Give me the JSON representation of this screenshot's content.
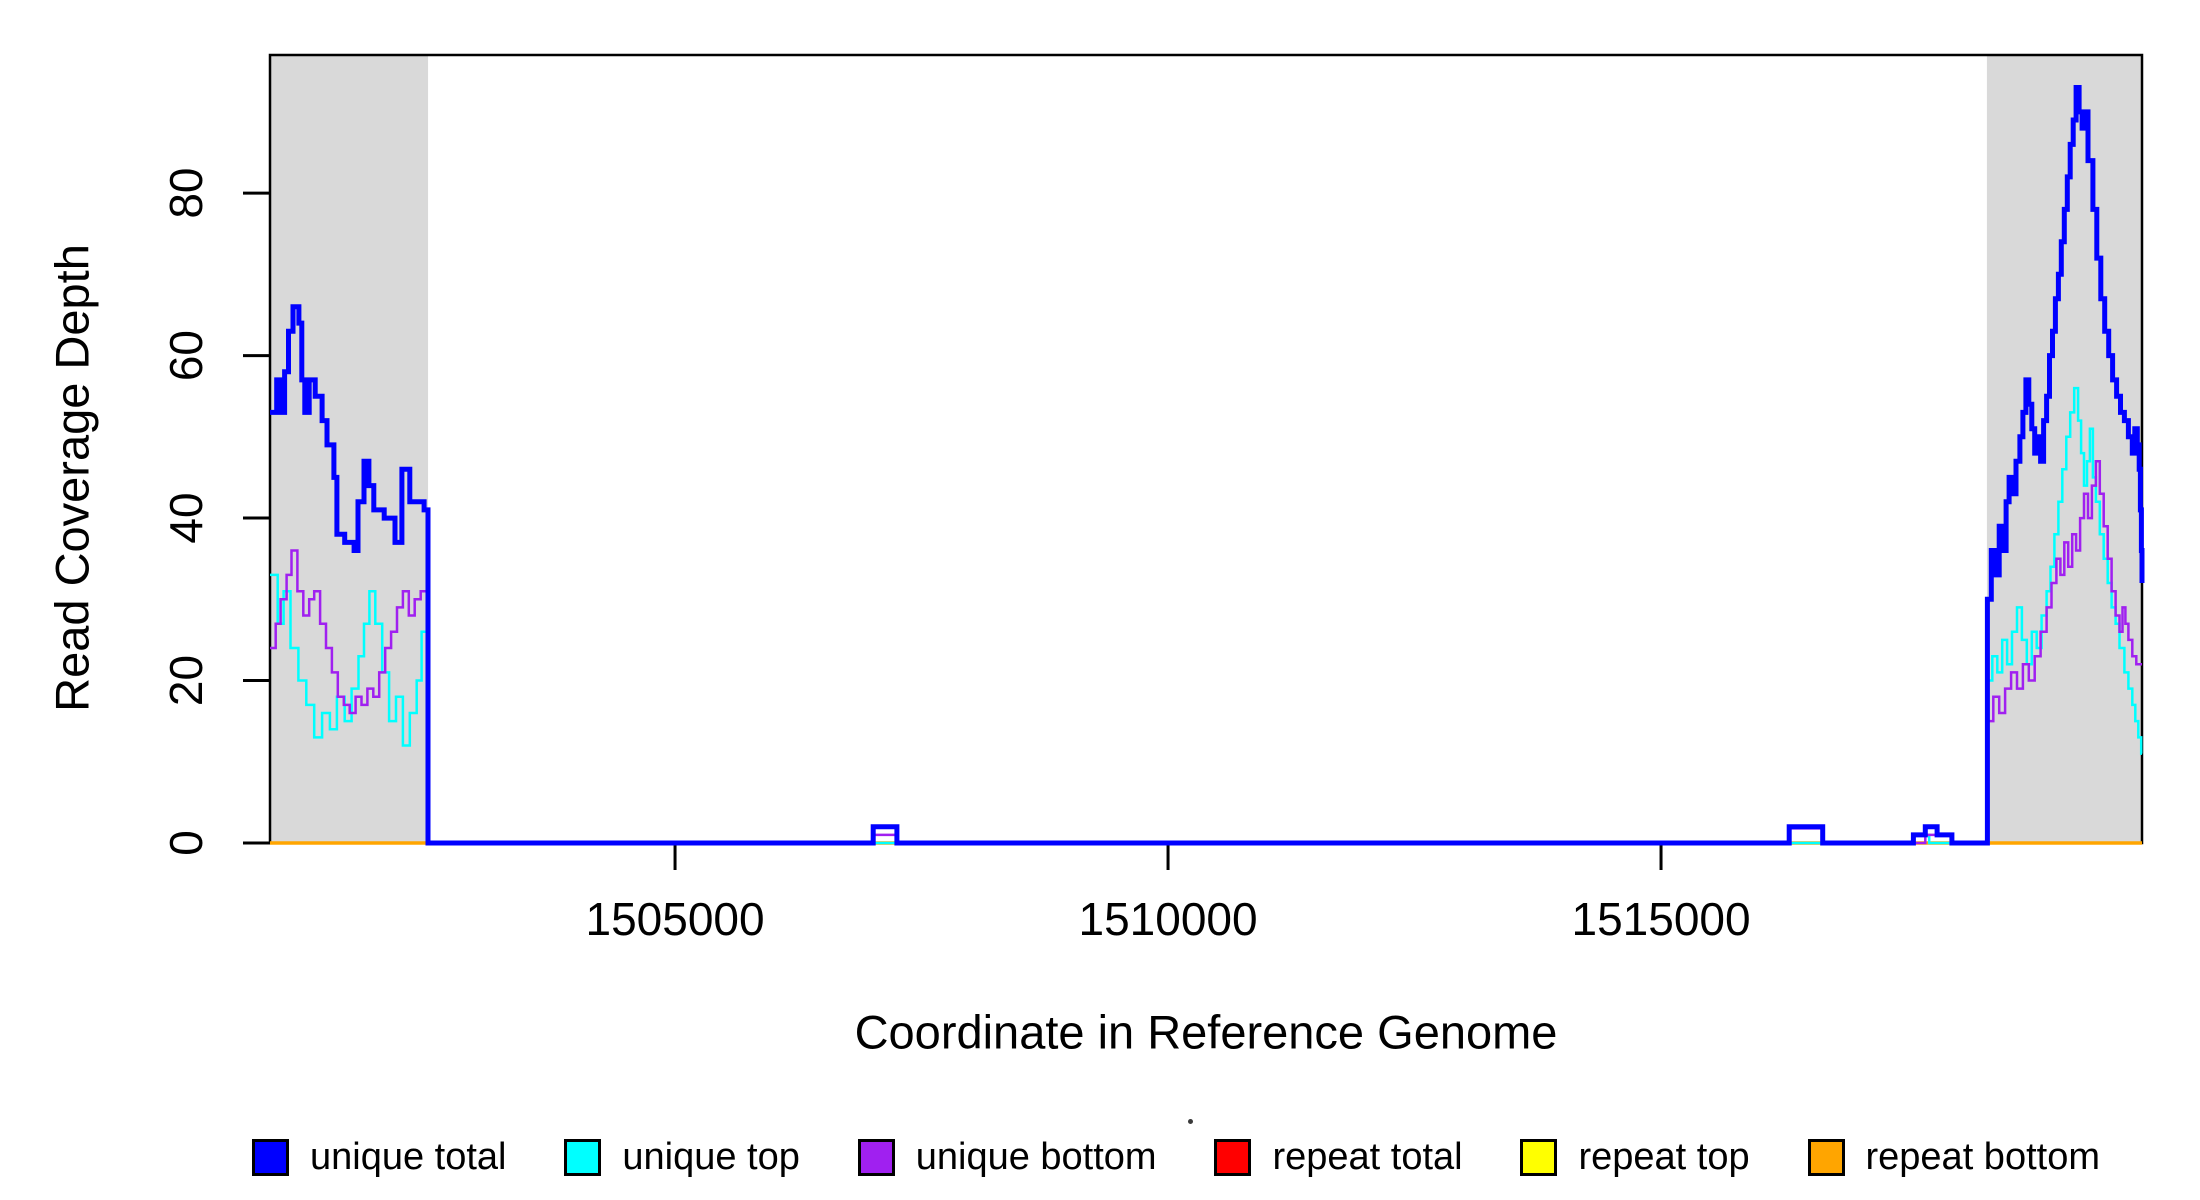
{
  "chart_data": {
    "type": "line",
    "subtype": "step",
    "title": "",
    "xlabel": "Coordinate in Reference Genome",
    "ylabel": "Read Coverage Depth",
    "xlim": [
      1500892,
      1519878
    ],
    "ylim": [
      0,
      97
    ],
    "grid": false,
    "legend_position": "bottom",
    "x_ticks": [
      {
        "value": 1505000,
        "label": "1505000"
      },
      {
        "value": 1510000,
        "label": "1510000"
      },
      {
        "value": 1515000,
        "label": "1515000"
      }
    ],
    "y_ticks": [
      {
        "value": 0,
        "label": "0"
      },
      {
        "value": 20,
        "label": "20"
      },
      {
        "value": 40,
        "label": "40"
      },
      {
        "value": 60,
        "label": "60"
      },
      {
        "value": 80,
        "label": "80"
      }
    ],
    "highlight_regions": [
      {
        "x0": 1500892,
        "x1": 1502495,
        "color": "#d9d9d9"
      },
      {
        "x0": 1518305,
        "x1": 1519878,
        "color": "#d9d9d9"
      }
    ],
    "series": [
      {
        "name": "repeat total",
        "color": "#ff0000",
        "line_width": 2,
        "steps": [
          [
            1500892,
            0
          ],
          [
            1519878,
            0
          ]
        ]
      },
      {
        "name": "repeat top",
        "color": "#ffff00",
        "line_width": 2,
        "steps": [
          [
            1500892,
            0
          ],
          [
            1519878,
            0
          ]
        ]
      },
      {
        "name": "repeat bottom",
        "color": "#ffa500",
        "line_width": 3.5,
        "steps": [
          [
            1500892,
            0
          ],
          [
            1519878,
            0
          ]
        ]
      },
      {
        "name": "unique top",
        "color": "#00ffff",
        "line_width": 2.5,
        "steps": [
          [
            1500892,
            33
          ],
          [
            1500970,
            27
          ],
          [
            1501030,
            31
          ],
          [
            1501100,
            24
          ],
          [
            1501180,
            20
          ],
          [
            1501260,
            17
          ],
          [
            1501340,
            13
          ],
          [
            1501420,
            16
          ],
          [
            1501500,
            14
          ],
          [
            1501570,
            18
          ],
          [
            1501650,
            15
          ],
          [
            1501720,
            19
          ],
          [
            1501790,
            23
          ],
          [
            1501845,
            27
          ],
          [
            1501900,
            31
          ],
          [
            1501960,
            27
          ],
          [
            1502030,
            21
          ],
          [
            1502100,
            15
          ],
          [
            1502170,
            18
          ],
          [
            1502240,
            12
          ],
          [
            1502310,
            16
          ],
          [
            1502380,
            20
          ],
          [
            1502430,
            26
          ],
          [
            1502494,
            0
          ],
          [
            1517560,
            1
          ],
          [
            1517720,
            0
          ],
          [
            1518310,
            20
          ],
          [
            1518360,
            23
          ],
          [
            1518410,
            21
          ],
          [
            1518460,
            25
          ],
          [
            1518510,
            22
          ],
          [
            1518560,
            26
          ],
          [
            1518610,
            29
          ],
          [
            1518660,
            25
          ],
          [
            1518710,
            22
          ],
          [
            1518760,
            26
          ],
          [
            1518810,
            24
          ],
          [
            1518860,
            28
          ],
          [
            1518910,
            31
          ],
          [
            1518950,
            34
          ],
          [
            1518990,
            38
          ],
          [
            1519030,
            42
          ],
          [
            1519070,
            46
          ],
          [
            1519110,
            50
          ],
          [
            1519150,
            53
          ],
          [
            1519190,
            56
          ],
          [
            1519230,
            52
          ],
          [
            1519260,
            48
          ],
          [
            1519290,
            44
          ],
          [
            1519320,
            47
          ],
          [
            1519350,
            51
          ],
          [
            1519380,
            45
          ],
          [
            1519410,
            42
          ],
          [
            1519450,
            38
          ],
          [
            1519490,
            35
          ],
          [
            1519530,
            32
          ],
          [
            1519570,
            29
          ],
          [
            1519610,
            27
          ],
          [
            1519650,
            24
          ],
          [
            1519700,
            21
          ],
          [
            1519740,
            19
          ],
          [
            1519780,
            17
          ],
          [
            1519810,
            15
          ],
          [
            1519840,
            13
          ],
          [
            1519870,
            11
          ],
          [
            1519878,
            11
          ]
        ]
      },
      {
        "name": "unique bottom",
        "color": "#a020f0",
        "line_width": 2.5,
        "steps": [
          [
            1500892,
            24
          ],
          [
            1500950,
            27
          ],
          [
            1501000,
            30
          ],
          [
            1501060,
            33
          ],
          [
            1501110,
            36
          ],
          [
            1501170,
            31
          ],
          [
            1501230,
            28
          ],
          [
            1501290,
            30
          ],
          [
            1501340,
            31
          ],
          [
            1501400,
            27
          ],
          [
            1501460,
            24
          ],
          [
            1501520,
            21
          ],
          [
            1501580,
            18
          ],
          [
            1501640,
            17
          ],
          [
            1501700,
            16
          ],
          [
            1501760,
            18
          ],
          [
            1501820,
            17
          ],
          [
            1501880,
            19
          ],
          [
            1501940,
            18
          ],
          [
            1502000,
            21
          ],
          [
            1502060,
            24
          ],
          [
            1502120,
            26
          ],
          [
            1502180,
            29
          ],
          [
            1502240,
            31
          ],
          [
            1502300,
            28
          ],
          [
            1502360,
            30
          ],
          [
            1502420,
            31
          ],
          [
            1502494,
            0
          ],
          [
            1507010,
            1
          ],
          [
            1507250,
            0
          ],
          [
            1516300,
            1.8
          ],
          [
            1516640,
            0
          ],
          [
            1517680,
            1
          ],
          [
            1517950,
            0
          ],
          [
            1518310,
            15
          ],
          [
            1518370,
            18
          ],
          [
            1518430,
            16
          ],
          [
            1518490,
            19
          ],
          [
            1518550,
            21
          ],
          [
            1518610,
            19
          ],
          [
            1518670,
            22
          ],
          [
            1518730,
            20
          ],
          [
            1518790,
            23
          ],
          [
            1518850,
            26
          ],
          [
            1518910,
            29
          ],
          [
            1518960,
            32
          ],
          [
            1519010,
            35
          ],
          [
            1519050,
            33
          ],
          [
            1519090,
            37
          ],
          [
            1519130,
            34
          ],
          [
            1519170,
            38
          ],
          [
            1519210,
            36
          ],
          [
            1519250,
            40
          ],
          [
            1519290,
            43
          ],
          [
            1519330,
            40
          ],
          [
            1519370,
            44
          ],
          [
            1519410,
            47
          ],
          [
            1519450,
            43
          ],
          [
            1519490,
            39
          ],
          [
            1519530,
            35
          ],
          [
            1519570,
            31
          ],
          [
            1519610,
            28
          ],
          [
            1519650,
            26
          ],
          [
            1519680,
            29
          ],
          [
            1519710,
            27
          ],
          [
            1519740,
            25
          ],
          [
            1519780,
            23
          ],
          [
            1519820,
            22
          ],
          [
            1519878,
            22
          ]
        ]
      },
      {
        "name": "unique total",
        "color": "#0000ff",
        "line_width": 5,
        "steps": [
          [
            1500892,
            53
          ],
          [
            1500960,
            57
          ],
          [
            1500990,
            53
          ],
          [
            1501040,
            58
          ],
          [
            1501080,
            63
          ],
          [
            1501125,
            66
          ],
          [
            1501185,
            64
          ],
          [
            1501215,
            57
          ],
          [
            1501245,
            53
          ],
          [
            1501290,
            57
          ],
          [
            1501350,
            55
          ],
          [
            1501420,
            52
          ],
          [
            1501470,
            49
          ],
          [
            1501540,
            45
          ],
          [
            1501570,
            38
          ],
          [
            1501650,
            37
          ],
          [
            1501745,
            36
          ],
          [
            1501785,
            42
          ],
          [
            1501845,
            47
          ],
          [
            1501895,
            44
          ],
          [
            1501945,
            41
          ],
          [
            1502050,
            40
          ],
          [
            1502160,
            37
          ],
          [
            1502230,
            46
          ],
          [
            1502310,
            42
          ],
          [
            1502410,
            42
          ],
          [
            1502455,
            41
          ],
          [
            1502494,
            0
          ],
          [
            1507010,
            2
          ],
          [
            1507250,
            0
          ],
          [
            1516300,
            2
          ],
          [
            1516640,
            0
          ],
          [
            1517560,
            1
          ],
          [
            1517680,
            2
          ],
          [
            1517800,
            1
          ],
          [
            1517950,
            0
          ],
          [
            1518310,
            30
          ],
          [
            1518350,
            36
          ],
          [
            1518390,
            33
          ],
          [
            1518430,
            39
          ],
          [
            1518460,
            36
          ],
          [
            1518500,
            42
          ],
          [
            1518530,
            45
          ],
          [
            1518560,
            43
          ],
          [
            1518600,
            47
          ],
          [
            1518640,
            50
          ],
          [
            1518670,
            53
          ],
          [
            1518700,
            57
          ],
          [
            1518730,
            54
          ],
          [
            1518760,
            51
          ],
          [
            1518790,
            48
          ],
          [
            1518820,
            50
          ],
          [
            1518850,
            47
          ],
          [
            1518880,
            52
          ],
          [
            1518910,
            55
          ],
          [
            1518940,
            60
          ],
          [
            1518970,
            63
          ],
          [
            1519000,
            67
          ],
          [
            1519030,
            70
          ],
          [
            1519060,
            74
          ],
          [
            1519090,
            78
          ],
          [
            1519120,
            82
          ],
          [
            1519150,
            86
          ],
          [
            1519180,
            89
          ],
          [
            1519210,
            93
          ],
          [
            1519240,
            90
          ],
          [
            1519270,
            88
          ],
          [
            1519300,
            90
          ],
          [
            1519330,
            84
          ],
          [
            1519380,
            78
          ],
          [
            1519420,
            72
          ],
          [
            1519460,
            67
          ],
          [
            1519500,
            63
          ],
          [
            1519540,
            60
          ],
          [
            1519580,
            57
          ],
          [
            1519620,
            55
          ],
          [
            1519660,
            53
          ],
          [
            1519700,
            52
          ],
          [
            1519740,
            50
          ],
          [
            1519780,
            48
          ],
          [
            1519805,
            51
          ],
          [
            1519830,
            49
          ],
          [
            1519850,
            46
          ],
          [
            1519862,
            41
          ],
          [
            1519872,
            36
          ],
          [
            1519878,
            32
          ]
        ]
      }
    ],
    "legend": {
      "items": [
        {
          "label": "unique total",
          "color": "#0000ff"
        },
        {
          "label": "unique top",
          "color": "#00ffff"
        },
        {
          "label": "unique bottom",
          "color": "#a020f0"
        },
        {
          "label": "repeat total",
          "color": "#ff0000"
        },
        {
          "label": "repeat top",
          "color": "#ffff00"
        },
        {
          "label": "repeat bottom",
          "color": "#ffa500"
        }
      ]
    }
  }
}
